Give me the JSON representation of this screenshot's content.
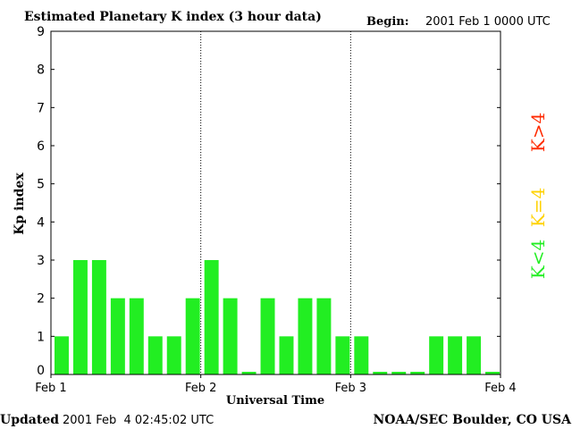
{
  "header": {
    "title": "Estimated Planetary K index (3 hour data)",
    "begin_label": "Begin:",
    "begin_value": "2001 Feb 1 0000 UTC"
  },
  "footer": {
    "updated_label": "Updated",
    "updated_value": "2001 Feb  4 02:45:02 UTC",
    "credit": "NOAA/SEC Boulder, CO USA"
  },
  "legend": [
    {
      "label": "K>4",
      "color": "#ff2a00"
    },
    {
      "label": "K=4",
      "color": "#ffd200"
    },
    {
      "label": "K<4",
      "color": "#22ee22"
    }
  ],
  "chart_data": {
    "type": "bar",
    "title": "Estimated Planetary K index (3 hour data)",
    "xlabel": "Universal Time",
    "ylabel": "Kp index",
    "ylim": [
      0,
      9
    ],
    "yticks": [
      0,
      1,
      2,
      3,
      4,
      5,
      6,
      7,
      8,
      9
    ],
    "xticks": [
      "Feb 1",
      "Feb 2",
      "Feb 3",
      "Feb 4"
    ],
    "interval_hours": 3,
    "day_dividers": [
      "Feb 2",
      "Feb 3"
    ],
    "bar_color": "#22ee22",
    "values": [
      1,
      3,
      3,
      2,
      2,
      1,
      1,
      2,
      3,
      2,
      0,
      2,
      1,
      2,
      2,
      1,
      1,
      0,
      0,
      0,
      1,
      1,
      1,
      0
    ]
  }
}
